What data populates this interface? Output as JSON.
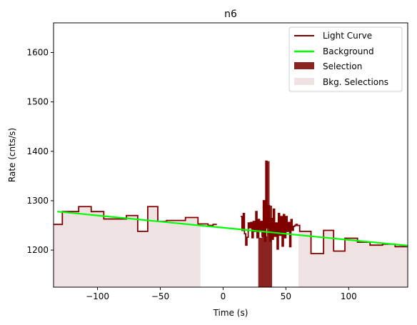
{
  "chart_data": {
    "type": "line",
    "title": "n6",
    "xlabel": "Time (s)",
    "ylabel": "Rate (cnts/s)",
    "xlim": [
      -135,
      147
    ],
    "ylim": [
      1125,
      1660
    ],
    "xticks": [
      -100,
      -50,
      0,
      50,
      100
    ],
    "yticks": [
      1200,
      1300,
      1400,
      1500,
      1600
    ],
    "tick_labels": {
      "x": [
        "−100",
        "−50",
        "0",
        "50",
        "100"
      ],
      "y": [
        "1200",
        "1300",
        "1400",
        "1500",
        "1600"
      ]
    },
    "grid": false,
    "legend_position": "top-right",
    "legend": [
      {
        "label": "Light Curve",
        "kind": "line",
        "color": "#800000"
      },
      {
        "label": "Background",
        "kind": "line",
        "color": "#00ff00"
      },
      {
        "label": "Selection",
        "kind": "patch",
        "color": "#8b2323"
      },
      {
        "label": "Bkg. Selections",
        "kind": "patch",
        "color": "#efe2e2"
      }
    ],
    "colors": {
      "light_curve": "#800000",
      "background": "#00ff00",
      "selection": "#8b2323",
      "bkg_selection": "#efe2e2"
    },
    "light_curve_segments": [
      {
        "x": [
          -135,
          -128,
          -128,
          -115,
          -115,
          -105,
          -105,
          -95,
          -95,
          -77,
          -77,
          -68,
          -68,
          -60,
          -60,
          -52,
          -52,
          -45,
          -45,
          -30,
          -30,
          -20,
          -20,
          -12,
          -12,
          -8,
          -8,
          -5
        ],
        "y": [
          1252,
          1252,
          1278,
          1278,
          1288,
          1288,
          1278,
          1278,
          1263,
          1263,
          1270,
          1270,
          1238,
          1238,
          1288,
          1288,
          1258,
          1258,
          1260,
          1260,
          1266,
          1266,
          1253,
          1253,
          1250,
          1250,
          1252,
          1252
        ]
      },
      {
        "x": [
          14,
          15,
          15,
          16,
          16,
          17,
          17,
          18,
          18,
          19,
          19,
          20,
          20,
          21,
          21,
          22,
          22,
          23,
          23,
          24,
          24,
          25,
          25,
          26,
          26,
          27,
          27,
          28,
          28,
          29,
          29,
          30,
          30,
          31,
          31,
          32,
          32,
          33,
          33,
          34,
          34,
          35,
          35,
          36,
          36,
          37,
          37,
          38,
          38,
          39,
          39,
          40,
          40,
          41,
          41,
          42,
          42,
          43,
          43,
          44,
          44,
          45,
          45,
          46,
          46,
          47,
          47,
          48,
          48,
          49,
          49,
          50,
          50,
          51,
          51,
          52,
          52,
          53,
          53,
          54,
          54,
          55,
          55,
          56,
          56,
          57,
          57,
          58,
          58,
          59,
          59,
          60
        ],
        "y": [
          1268,
          1268,
          1240,
          1240,
          1274,
          1274,
          1233,
          1233,
          1210,
          1210,
          1226,
          1226,
          1255,
          1255,
          1245,
          1245,
          1256,
          1256,
          1225,
          1225,
          1258,
          1258,
          1238,
          1238,
          1278,
          1278,
          1225,
          1225,
          1262,
          1262,
          1240,
          1240,
          1258,
          1258,
          1228,
          1228,
          1300,
          1300,
          1218,
          1218,
          1380,
          1380,
          1245,
          1245,
          1290,
          1290,
          1218,
          1218,
          1264,
          1264,
          1222,
          1222,
          1283,
          1283,
          1228,
          1228,
          1255,
          1255,
          1202,
          1202,
          1274,
          1274,
          1230,
          1230,
          1268,
          1268,
          1208,
          1208,
          1272,
          1272,
          1225,
          1225,
          1268,
          1268,
          1238,
          1238,
          1256,
          1256,
          1207,
          1207,
          1262,
          1262,
          1240,
          1240,
          1248,
          1248,
          1250,
          1250,
          1252,
          1252,
          1250,
          1250
        ]
      },
      {
        "x": [
          60,
          61,
          61,
          70,
          70,
          80,
          80,
          88,
          88,
          97,
          97,
          107,
          107,
          117,
          117,
          127,
          127,
          137,
          137,
          147
        ],
        "y": [
          1250,
          1250,
          1238,
          1238,
          1193,
          1193,
          1240,
          1240,
          1198,
          1198,
          1224,
          1224,
          1216,
          1216,
          1210,
          1210,
          1212,
          1212,
          1207,
          1207
        ]
      }
    ],
    "background_line": {
      "x": [
        -132,
        147
      ],
      "y": [
        1278,
        1209
      ]
    },
    "selection": {
      "x": [
        28,
        29,
        29,
        31,
        31,
        33,
        33,
        35,
        35,
        37,
        37,
        39,
        39
      ],
      "y": [
        1238,
        1238,
        1225,
        1225,
        1240,
        1240,
        1228,
        1228,
        1380,
        1380,
        1290,
        1290,
        1218
      ]
    },
    "bkg_selections": [
      {
        "x": [
          -135,
          -128,
          -128,
          -115,
          -115,
          -105,
          -105,
          -95,
          -95,
          -77,
          -77,
          -68,
          -68,
          -60,
          -60,
          -52,
          -52,
          -45,
          -45,
          -30,
          -30,
          -20,
          -20,
          -18
        ],
        "y": [
          1252,
          1252,
          1278,
          1278,
          1288,
          1288,
          1278,
          1278,
          1263,
          1263,
          1270,
          1270,
          1238,
          1238,
          1288,
          1288,
          1258,
          1258,
          1260,
          1260,
          1266,
          1266,
          1253,
          1253
        ]
      },
      {
        "x": [
          60,
          61,
          61,
          70,
          70,
          80,
          80,
          88,
          88,
          97,
          97,
          107,
          107,
          117,
          117,
          127,
          127,
          137,
          137,
          147
        ],
        "y": [
          1250,
          1250,
          1238,
          1238,
          1193,
          1193,
          1240,
          1240,
          1198,
          1198,
          1224,
          1224,
          1216,
          1216,
          1210,
          1210,
          1212,
          1212,
          1207,
          1207
        ]
      }
    ]
  }
}
